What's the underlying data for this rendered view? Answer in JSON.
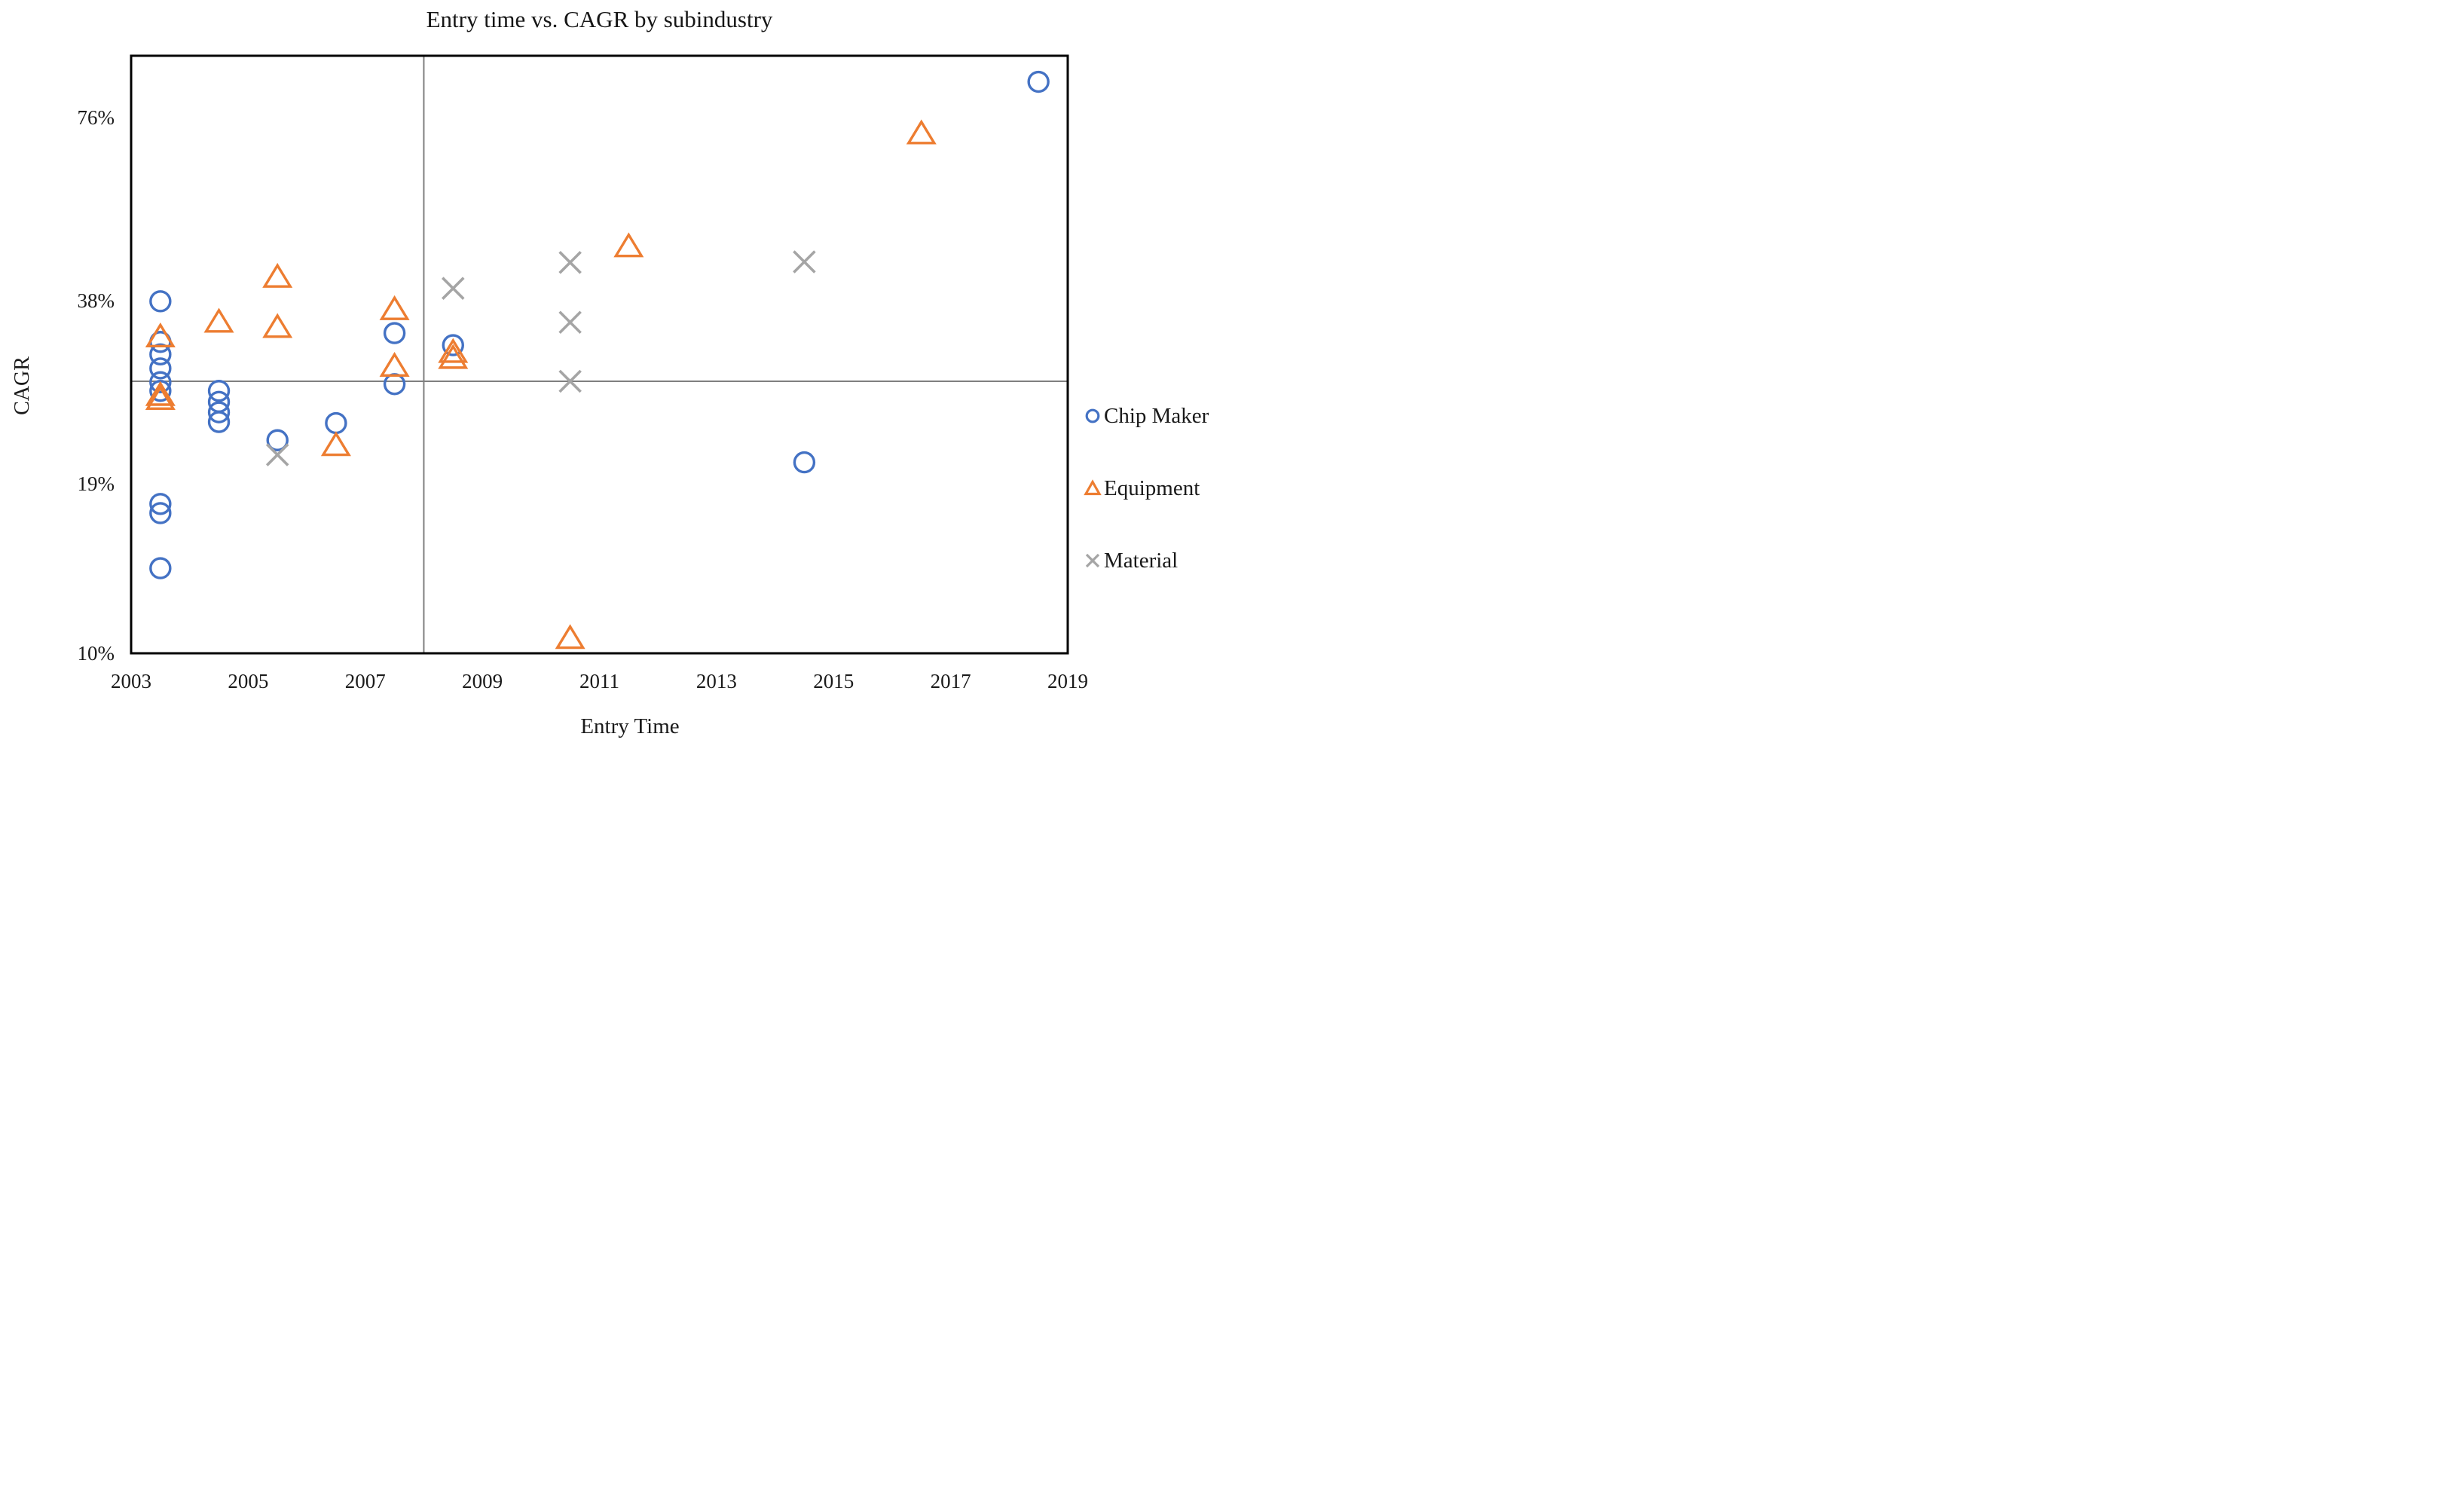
{
  "colors": {
    "chip_maker": "#4472C4",
    "equipment": "#ED7D31",
    "material": "#A5A5A5",
    "crosshair": "#7F7F7F",
    "frame": "#000000",
    "text": "#1a1a1a",
    "background": "#ffffff"
  },
  "chart_data": {
    "type": "scatter",
    "title": "Entry time vs. CAGR by subindustry",
    "xlabel": "Entry Time",
    "ylabel": "CAGR",
    "grid": false,
    "legend_position": "right",
    "x_range": [
      2003,
      2019
    ],
    "x_ticks": [
      "2003",
      "2005",
      "2007",
      "2009",
      "2011",
      "2013",
      "2015",
      "2017",
      "2019"
    ],
    "y_scale": "log2",
    "y_range": [
      10,
      96
    ],
    "y_ticks": [
      {
        "value": 76,
        "label": "76%"
      },
      {
        "value": 38,
        "label": "38%"
      },
      {
        "value": 19,
        "label": "19%"
      },
      {
        "value": 10,
        "label": "10%"
      }
    ],
    "crosshair": {
      "x": 2008,
      "y": 28
    },
    "series": [
      {
        "name": "Chip Maker",
        "marker": "circle",
        "color": "#4472C4",
        "points": [
          [
            2003.5,
            37.9
          ],
          [
            2003.5,
            32.5
          ],
          [
            2003.5,
            31.0
          ],
          [
            2003.5,
            29.4
          ],
          [
            2003.5,
            27.9
          ],
          [
            2003.5,
            27.0
          ],
          [
            2003.5,
            17.6
          ],
          [
            2003.5,
            17.0
          ],
          [
            2003.5,
            13.8
          ],
          [
            2004.5,
            27.0
          ],
          [
            2004.5,
            25.9
          ],
          [
            2004.5,
            24.9
          ],
          [
            2004.5,
            24.0
          ],
          [
            2005.5,
            22.4
          ],
          [
            2006.5,
            23.9
          ],
          [
            2007.5,
            33.6
          ],
          [
            2007.5,
            27.7
          ],
          [
            2008.5,
            32.1
          ],
          [
            2014.5,
            20.6
          ],
          [
            2018.5,
            87.0
          ]
        ]
      },
      {
        "name": "Equipment",
        "marker": "triangle",
        "color": "#ED7D31",
        "points": [
          [
            2003.5,
            33.2
          ],
          [
            2003.5,
            26.6
          ],
          [
            2003.5,
            26.2
          ],
          [
            2004.5,
            35.1
          ],
          [
            2005.5,
            41.6
          ],
          [
            2005.5,
            34.4
          ],
          [
            2006.5,
            22.0
          ],
          [
            2007.5,
            36.8
          ],
          [
            2007.5,
            29.7
          ],
          [
            2008.5,
            31.3
          ],
          [
            2008.5,
            30.6
          ],
          [
            2010.5,
            10.6
          ],
          [
            2011.5,
            46.7
          ],
          [
            2016.5,
            71.6
          ]
        ]
      },
      {
        "name": "Material",
        "marker": "x",
        "color": "#A5A5A5",
        "points": [
          [
            2005.5,
            21.2
          ],
          [
            2008.5,
            39.8
          ],
          [
            2010.5,
            43.9
          ],
          [
            2010.5,
            35.0
          ],
          [
            2010.5,
            28.0
          ],
          [
            2014.5,
            44.0
          ]
        ]
      }
    ]
  }
}
